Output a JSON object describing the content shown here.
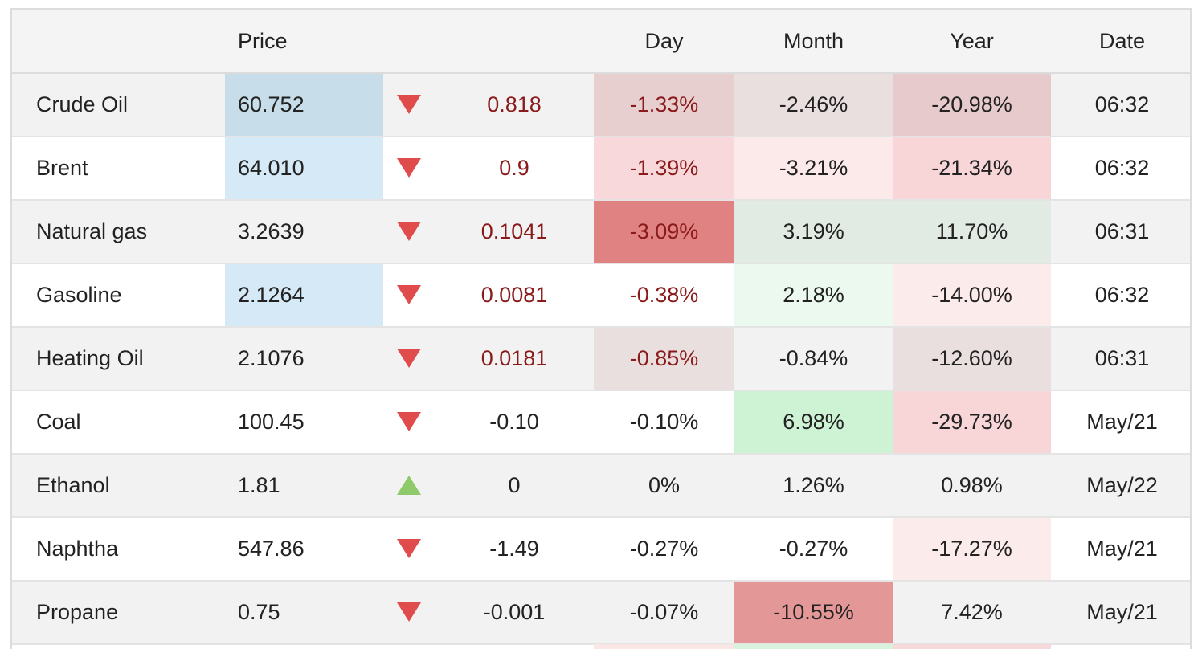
{
  "header": {
    "name": "",
    "price": "Price",
    "change": "",
    "day": "Day",
    "month": "Month",
    "year": "Year",
    "date": "Date"
  },
  "colors": {
    "price_highlight_dark": "#c7dde9",
    "price_highlight_light": "#d5eaf6",
    "arrow_down": "#e04b4b",
    "arrow_up": "#8ec96a",
    "negative_text": "#8b1a1a"
  },
  "rows": [
    {
      "name": "Crude Oil",
      "price": "60.752",
      "direction": "down",
      "change": "0.818",
      "change_neg_color": true,
      "day": "-1.33%",
      "day_neg_color": true,
      "month": "-2.46%",
      "year": "-20.98%",
      "date": "06:32",
      "price_bg": "#c7dde9",
      "day_bg": "#e7cfd0",
      "month_bg": "#eadfdf",
      "year_bg": "#e7cbcc"
    },
    {
      "name": "Brent",
      "price": "64.010",
      "direction": "down",
      "change": "0.9",
      "change_neg_color": true,
      "day": "-1.39%",
      "day_neg_color": true,
      "month": "-3.21%",
      "year": "-21.34%",
      "date": "06:32",
      "price_bg": "#d5eaf6",
      "day_bg": "#f8d8da",
      "month_bg": "#fceaea",
      "year_bg": "#f8d6d8"
    },
    {
      "name": "Natural gas",
      "price": "3.2639",
      "direction": "down",
      "change": "0.1041",
      "change_neg_color": true,
      "day": "-3.09%",
      "day_neg_color": true,
      "month": "3.19%",
      "year": "11.70%",
      "date": "06:31",
      "price_bg": "",
      "day_bg": "#e08282",
      "month_bg": "#e1ebe3",
      "year_bg": "#e1ebe3"
    },
    {
      "name": "Gasoline",
      "price": "2.1264",
      "direction": "down",
      "change": "0.0081",
      "change_neg_color": true,
      "day": "-0.38%",
      "day_neg_color": true,
      "month": "2.18%",
      "year": "-14.00%",
      "date": "06:32",
      "price_bg": "#d5eaf6",
      "day_bg": "",
      "month_bg": "#ecf9ef",
      "year_bg": "#fcebeb"
    },
    {
      "name": "Heating Oil",
      "price": "2.1076",
      "direction": "down",
      "change": "0.0181",
      "change_neg_color": true,
      "day": "-0.85%",
      "day_neg_color": true,
      "month": "-0.84%",
      "year": "-12.60%",
      "date": "06:31",
      "price_bg": "",
      "day_bg": "#eadfdf",
      "month_bg": "",
      "year_bg": "#eadfdf"
    },
    {
      "name": "Coal",
      "price": "100.45",
      "direction": "down",
      "change": "-0.10",
      "change_neg_color": false,
      "day": "-0.10%",
      "day_neg_color": false,
      "month": "6.98%",
      "year": "-29.73%",
      "date": "May/21",
      "price_bg": "",
      "day_bg": "",
      "month_bg": "#cdf2d4",
      "year_bg": "#f8d6d8"
    },
    {
      "name": "Ethanol",
      "price": "1.81",
      "direction": "up",
      "change": "0",
      "change_neg_color": false,
      "day": "0%",
      "day_neg_color": false,
      "month": "1.26%",
      "year": "0.98%",
      "date": "May/22",
      "price_bg": "",
      "day_bg": "",
      "month_bg": "",
      "year_bg": ""
    },
    {
      "name": "Naphtha",
      "price": "547.86",
      "direction": "down",
      "change": "-1.49",
      "change_neg_color": false,
      "day": "-0.27%",
      "day_neg_color": false,
      "month": "-0.27%",
      "year": "-17.27%",
      "date": "May/21",
      "price_bg": "",
      "day_bg": "",
      "month_bg": "",
      "year_bg": "#fcebeb"
    },
    {
      "name": "Propane",
      "price": "0.75",
      "direction": "down",
      "change": "-0.001",
      "change_neg_color": false,
      "day": "-0.07%",
      "day_neg_color": false,
      "month": "-10.55%",
      "year": "7.42%",
      "date": "May/21",
      "price_bg": "",
      "day_bg": "",
      "month_bg": "#e39797",
      "year_bg": ""
    }
  ]
}
